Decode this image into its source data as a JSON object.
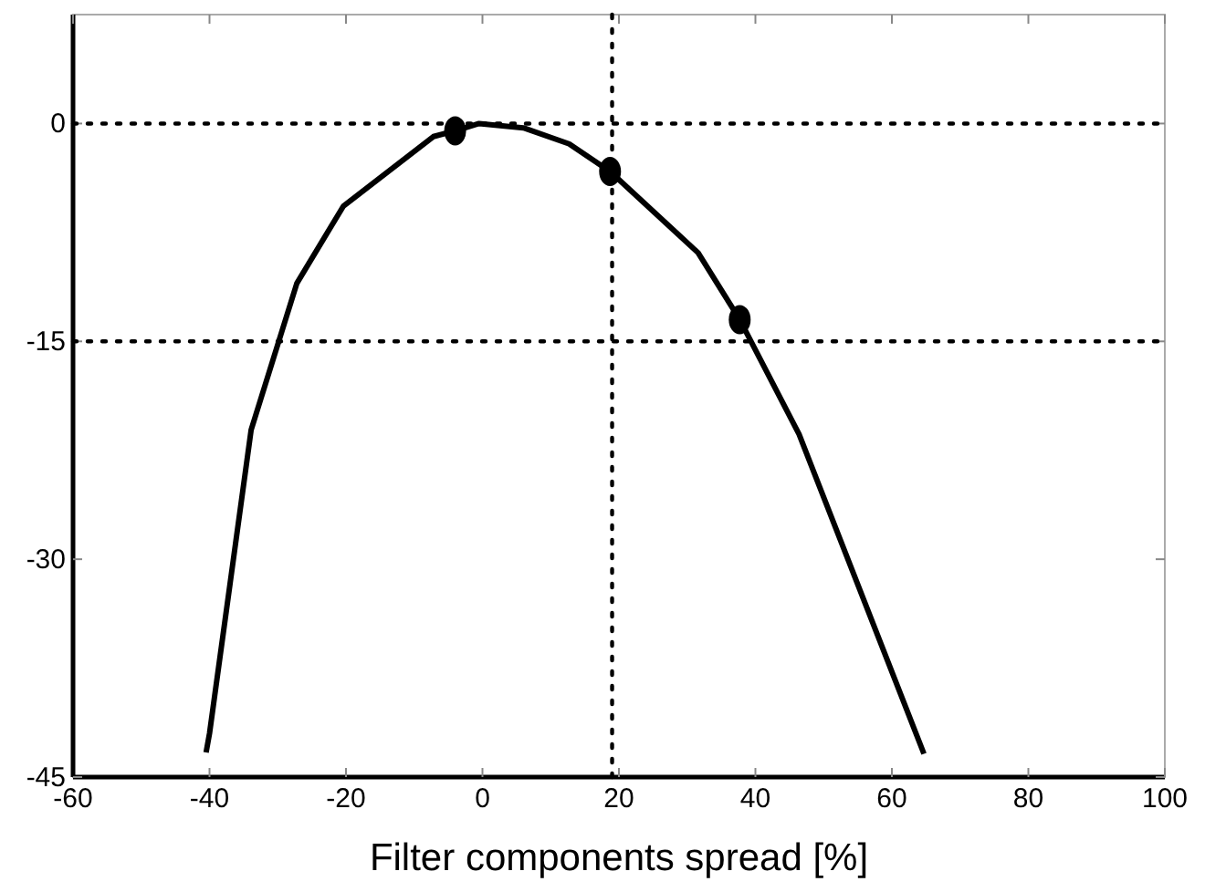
{
  "chart_data": {
    "type": "line",
    "xlabel": "Filter components spread [%]",
    "xlim": [
      -60,
      100
    ],
    "xticks": [
      -60,
      -40,
      -20,
      0,
      20,
      40,
      60,
      80,
      100
    ],
    "ylim": [
      -45,
      7.5
    ],
    "yticks": [
      -45,
      -30,
      -15,
      0
    ],
    "grid": false,
    "line_style": "solid",
    "series": [
      {
        "marker": "none",
        "color": "#000000",
        "x": [
          -40.5,
          -40,
          -33.9,
          -27.2,
          -20.4,
          -7.2,
          -4,
          -0.5,
          6,
          12.7,
          18.7,
          31.6,
          37.7,
          46.4,
          64.7
        ],
        "values": [
          -43.3,
          -42,
          -21.1,
          -11,
          -5.7,
          -0.9,
          -0.5,
          0,
          -0.3,
          -1.4,
          -3.3,
          -8.9,
          -13.5,
          -21.4,
          -43.4
        ]
      },
      {
        "type": "scatter",
        "marker": "circle",
        "color": "#000000",
        "x": [
          -4,
          18.7,
          37.7
        ],
        "values": [
          -0.5,
          -3.3,
          -13.5
        ]
      }
    ],
    "ref_lines": [
      {
        "axis": "y",
        "value": 0,
        "line_style": "dotted"
      },
      {
        "axis": "y",
        "value": -15,
        "line_style": "dotted"
      },
      {
        "axis": "x",
        "value": 19,
        "line_style": "dotted"
      }
    ]
  }
}
